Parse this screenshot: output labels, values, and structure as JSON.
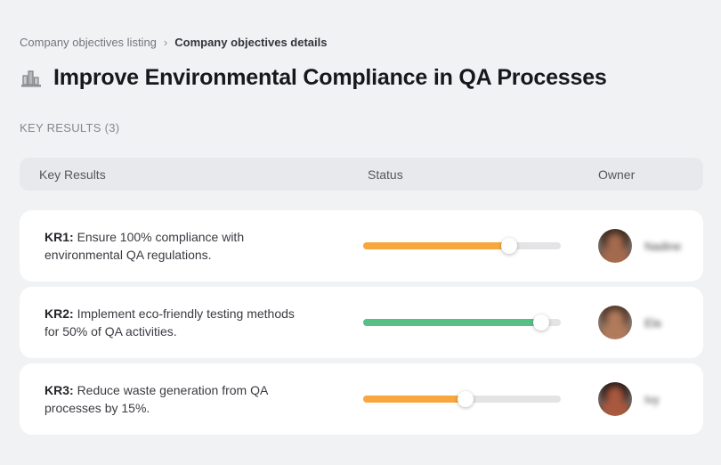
{
  "breadcrumb": {
    "separator": "›",
    "items": [
      {
        "label": "Company objectives listing"
      },
      {
        "label": "Company objectives details"
      }
    ]
  },
  "header": {
    "icon": "building-chart-icon",
    "title": "Improve Environmental Compliance in QA Processes"
  },
  "section_label": "KEY RESULTS (3)",
  "table": {
    "columns": {
      "kr": "Key Results",
      "status": "Status",
      "owner": "Owner"
    },
    "rows": [
      {
        "kr_label": "KR1:",
        "kr_text": "Ensure 100% compliance with environmental QA regulations.",
        "progress_percent": 74,
        "progress_color": "#f7a73e",
        "owner_name": "Nadine",
        "avatar_hair": "#35251f",
        "avatar_skin": "#a46a4d",
        "avatar_bg": "#cdc3bb"
      },
      {
        "kr_label": "KR2:",
        "kr_text": "Implement eco-friendly testing methods for 50% of QA activities.",
        "progress_percent": 90,
        "progress_color": "#57c087",
        "owner_name": "Ela",
        "avatar_hair": "#4a3226",
        "avatar_skin": "#b07b5b",
        "avatar_bg": "#d6cec7"
      },
      {
        "kr_label": "KR3:",
        "kr_text": "Reduce waste generation from QA processes by 15%.",
        "progress_percent": 52,
        "progress_color": "#f7a73e",
        "owner_name": "Ivy",
        "avatar_hair": "#241a18",
        "avatar_skin": "#a8583f",
        "avatar_bg": "#cfc6c0"
      }
    ]
  },
  "colors": {
    "page_bg": "#f1f2f4",
    "card_bg": "#ffffff",
    "table_header_bg": "#e7e9ed",
    "track_bg": "#e4e4e6",
    "accent_orange": "#f7a73e",
    "accent_green": "#57c087"
  }
}
